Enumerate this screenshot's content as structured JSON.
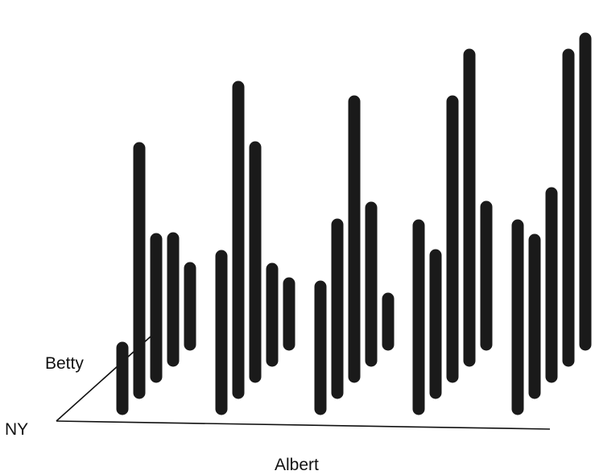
{
  "chart_data": {
    "type": "bar",
    "variant": "3d-floating-bars",
    "title": "",
    "axis_labels": {
      "x": "Albert",
      "depth": "Betty",
      "origin": "NY"
    },
    "grid": false,
    "legend": false,
    "bar_color": "#1a1a1a",
    "groups": [
      {
        "values": [
          20,
          80,
          45,
          40,
          25
        ]
      },
      {
        "values": [
          50,
          100,
          75,
          30,
          20
        ]
      },
      {
        "values": [
          40,
          55,
          90,
          50,
          15
        ]
      },
      {
        "values": [
          60,
          45,
          90,
          100,
          45
        ]
      },
      {
        "values": [
          60,
          50,
          60,
          100,
          100
        ]
      }
    ]
  }
}
